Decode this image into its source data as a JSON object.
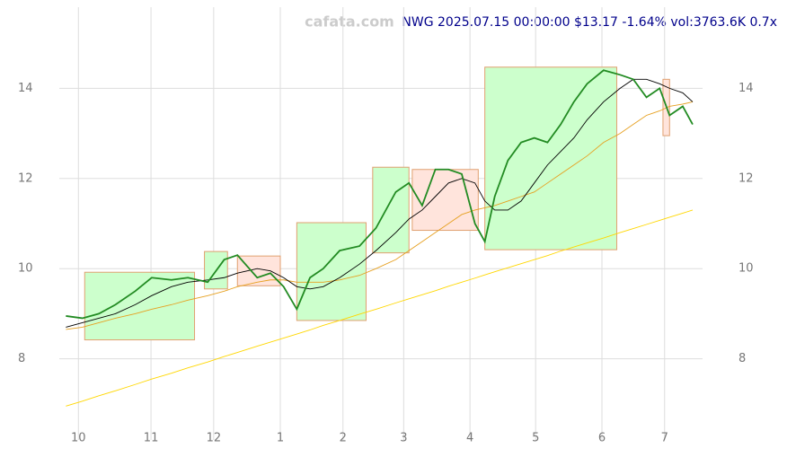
{
  "chart_data": {
    "type": "line",
    "title": "NWG 2025.07.15 00:00:00 $13.17 -1.64% vol:3763.6K 0.7x",
    "watermark": "cafata.com",
    "grid": true,
    "xlim": [
      -2,
      193
    ],
    "ylim": [
      6.2,
      15.8
    ],
    "yticks": [
      8,
      10,
      12,
      14
    ],
    "xticks": [
      {
        "value": 3.8,
        "label": "10"
      },
      {
        "value": 25.8,
        "label": "11"
      },
      {
        "value": 44.8,
        "label": "12"
      },
      {
        "value": 65,
        "label": "1"
      },
      {
        "value": 84,
        "label": "2"
      },
      {
        "value": 102.4,
        "label": "3"
      },
      {
        "value": 122.5,
        "label": "4"
      },
      {
        "value": 142.4,
        "label": "5"
      },
      {
        "value": 162.5,
        "label": "6"
      },
      {
        "value": 181.5,
        "label": "7"
      }
    ],
    "x": [
      0,
      5,
      10,
      15,
      21,
      26,
      32,
      37,
      43,
      48,
      52,
      58,
      62,
      66,
      70,
      74,
      78,
      83,
      89,
      94,
      100,
      104,
      108,
      112,
      116,
      120,
      124,
      127,
      130,
      134,
      138,
      142,
      146,
      150,
      154,
      158,
      163,
      168,
      172,
      176,
      180,
      183,
      187,
      190
    ],
    "boxes": [
      {
        "x": [
          5.7,
          39
        ],
        "y": [
          8.42,
          9.92
        ],
        "color": "#ccffcc"
      },
      {
        "x": [
          42,
          49
        ],
        "y": [
          9.55,
          10.38
        ],
        "color": "#ccffcc"
      },
      {
        "x": [
          52,
          65
        ],
        "y": [
          9.62,
          10.28
        ],
        "color": "#ffe4dc"
      },
      {
        "x": [
          70,
          91
        ],
        "y": [
          8.85,
          11.02
        ],
        "color": "#ccffcc"
      },
      {
        "x": [
          93,
          104
        ],
        "y": [
          10.35,
          12.25
        ],
        "color": "#ccffcc"
      },
      {
        "x": [
          105,
          125
        ],
        "y": [
          10.85,
          12.2
        ],
        "color": "#ffe4dc"
      },
      {
        "x": [
          127,
          167
        ],
        "y": [
          10.42,
          14.47
        ],
        "color": "#ccffcc"
      },
      {
        "x": [
          181,
          183
        ],
        "y": [
          12.95,
          14.2
        ],
        "color": "#ffe4dc"
      }
    ],
    "series": [
      {
        "color": "#ffd700",
        "values": [
          6.95,
          7.06,
          7.18,
          7.29,
          7.43,
          7.55,
          7.68,
          7.8,
          7.93,
          8.05,
          8.14,
          8.28,
          8.37,
          8.46,
          8.55,
          8.64,
          8.74,
          8.85,
          8.99,
          9.1,
          9.24,
          9.33,
          9.42,
          9.51,
          9.61,
          9.7,
          9.79,
          9.86,
          9.93,
          10.02,
          10.11,
          10.2,
          10.29,
          10.39,
          10.48,
          10.57,
          10.68,
          10.8,
          10.89,
          10.98,
          11.07,
          11.14,
          11.23,
          11.3
        ]
      },
      {
        "color": "#e6a020",
        "values": [
          8.65,
          8.7,
          8.8,
          8.9,
          9.0,
          9.1,
          9.2,
          9.3,
          9.4,
          9.5,
          9.6,
          9.7,
          9.75,
          9.75,
          9.7,
          9.7,
          9.7,
          9.75,
          9.85,
          10.0,
          10.2,
          10.4,
          10.6,
          10.8,
          11.0,
          11.2,
          11.3,
          11.35,
          11.4,
          11.5,
          11.6,
          11.7,
          11.9,
          12.1,
          12.3,
          12.5,
          12.8,
          13.0,
          13.2,
          13.4,
          13.5,
          13.6,
          13.65,
          13.7
        ]
      },
      {
        "color": "#000000",
        "values": [
          8.7,
          8.8,
          8.9,
          9.0,
          9.2,
          9.4,
          9.6,
          9.7,
          9.75,
          9.8,
          9.9,
          10.0,
          9.95,
          9.8,
          9.6,
          9.55,
          9.6,
          9.8,
          10.1,
          10.4,
          10.8,
          11.1,
          11.3,
          11.6,
          11.9,
          12.0,
          11.9,
          11.5,
          11.3,
          11.3,
          11.5,
          11.9,
          12.3,
          12.6,
          12.9,
          13.3,
          13.7,
          14.0,
          14.2,
          14.2,
          14.1,
          14.0,
          13.9,
          13.7
        ]
      },
      {
        "color": "#228b22",
        "values": [
          8.95,
          8.9,
          9.0,
          9.2,
          9.5,
          9.8,
          9.75,
          9.8,
          9.7,
          10.2,
          10.3,
          9.8,
          9.9,
          9.6,
          9.1,
          9.8,
          10.0,
          10.4,
          10.5,
          10.9,
          11.7,
          11.9,
          11.4,
          12.2,
          12.2,
          12.1,
          11.0,
          10.6,
          11.6,
          12.4,
          12.8,
          12.9,
          12.8,
          13.2,
          13.7,
          14.1,
          14.4,
          14.3,
          14.2,
          13.8,
          14.0,
          13.4,
          13.6,
          13.2
        ]
      }
    ]
  }
}
